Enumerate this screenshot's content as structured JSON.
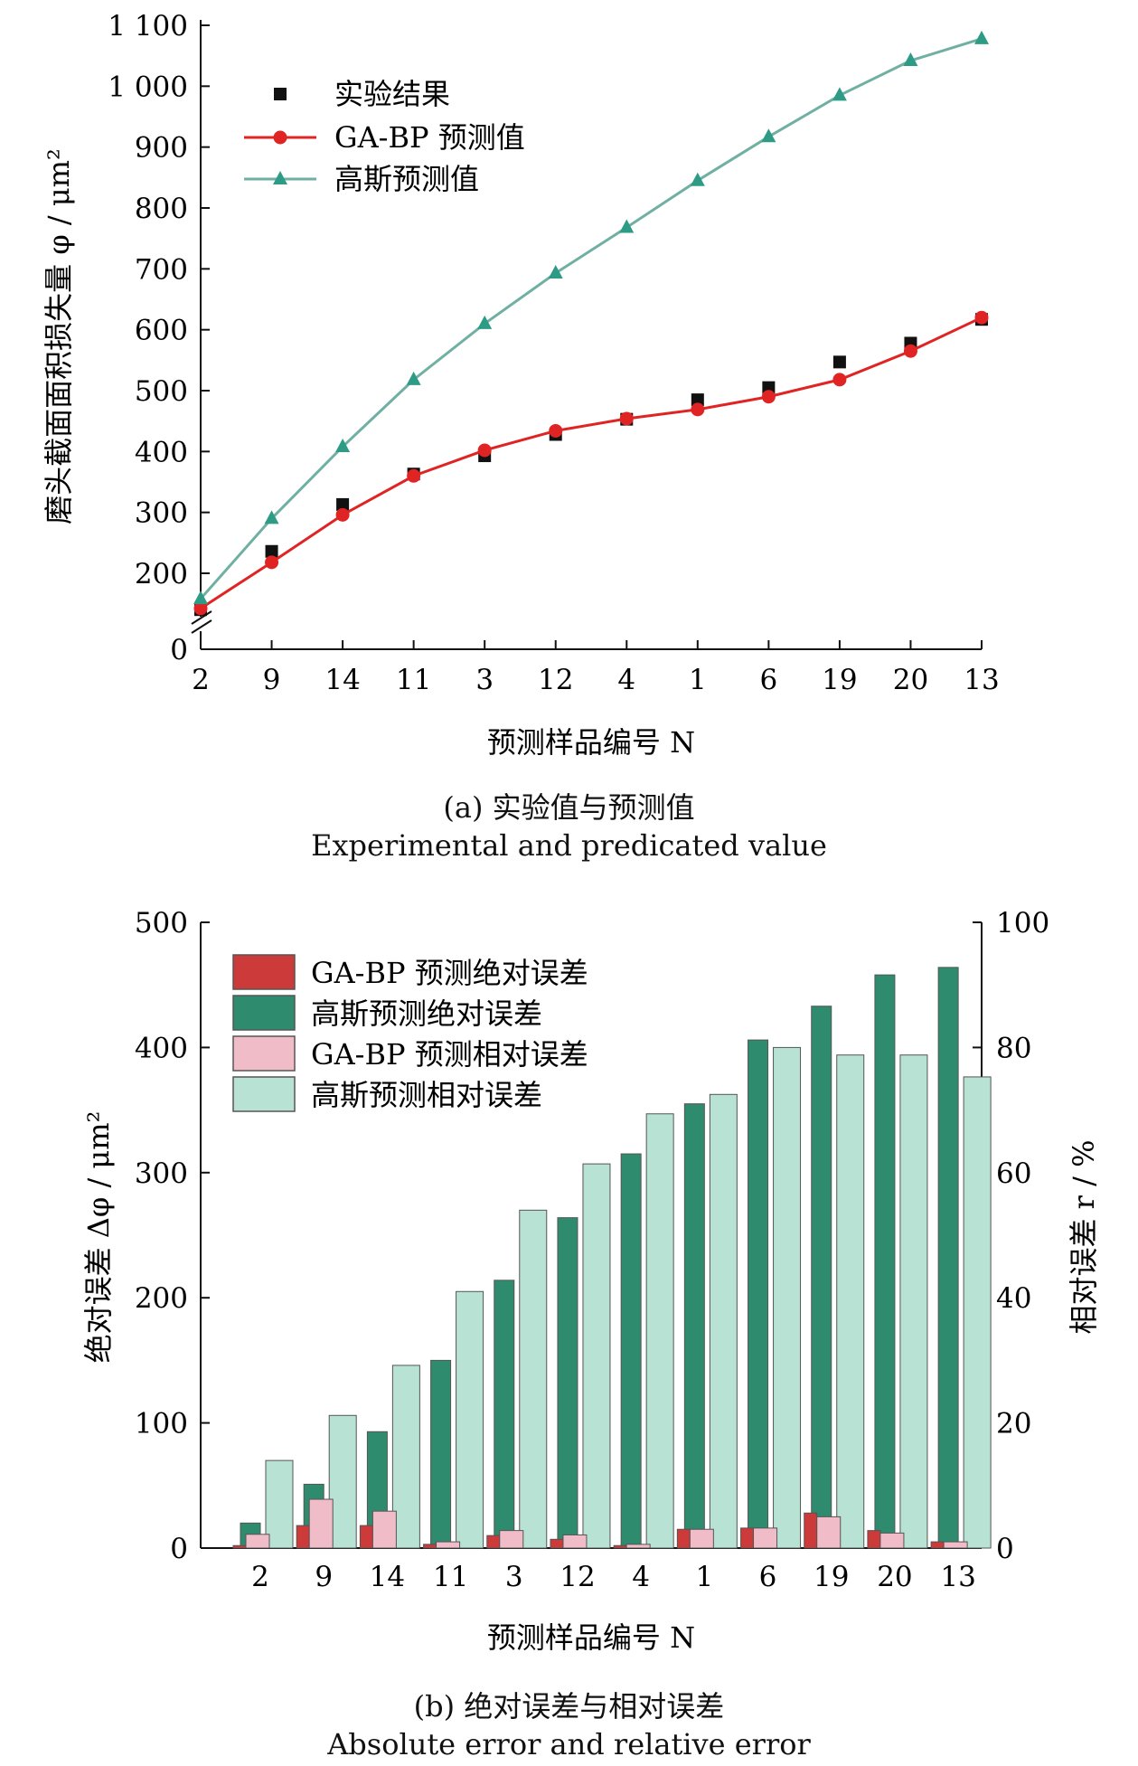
{
  "chart_data": [
    {
      "type": "line",
      "xlabel": "预测样品编号 N",
      "ylabel": "磨头截面面积损失量 φ / μm²",
      "categories": [
        "2",
        "9",
        "14",
        "11",
        "3",
        "12",
        "4",
        "1",
        "6",
        "19",
        "20",
        "13"
      ],
      "ylim": [
        0,
        1100
      ],
      "yticks": [
        "0",
        "200",
        "300",
        "400",
        "500",
        "600",
        "700",
        "800",
        "900",
        "1 000",
        "1 100"
      ],
      "axis_break": true,
      "legend_position": "top-left",
      "series": [
        {
          "name": "实验结果",
          "marker": "square",
          "color": "#111111",
          "values": [
            140,
            236,
            313,
            363,
            393,
            428,
            453,
            485,
            505,
            547,
            578,
            617
          ]
        },
        {
          "name": "GA-BP 预测值",
          "marker": "circle",
          "color": "#e02424",
          "values": [
            142,
            218,
            296,
            360,
            402,
            434,
            454,
            469,
            490,
            518,
            565,
            620
          ]
        },
        {
          "name": "高斯预测值",
          "marker": "triangle",
          "color": "#2e9b86",
          "values": [
            158,
            290,
            408,
            518,
            610,
            693,
            768,
            845,
            917,
            985,
            1042,
            1078
          ]
        }
      ],
      "caption": "(a) 实验值与预测值",
      "caption_en": "Experimental and predicated value"
    },
    {
      "type": "bar",
      "xlabel": "预测样品编号 N",
      "ylabel": "绝对误差 Δφ / μm²",
      "ylabel_right": "相对误差 r / %",
      "categories": [
        "2",
        "9",
        "14",
        "11",
        "3",
        "12",
        "4",
        "1",
        "6",
        "19",
        "20",
        "13"
      ],
      "ylim": [
        0,
        500
      ],
      "ylim_right": [
        0,
        100
      ],
      "yticks": [
        "0",
        "100",
        "200",
        "300",
        "400",
        "500"
      ],
      "yticks_right": [
        "0",
        "20",
        "40",
        "60",
        "80",
        "100"
      ],
      "legend_position": "top-left",
      "series": [
        {
          "name": "GA-BP 预测绝对误差",
          "axis": "left",
          "color": "#cc3a3a",
          "values": [
            2,
            18,
            18,
            3,
            10,
            7,
            2,
            15,
            16,
            28,
            14,
            5
          ]
        },
        {
          "name": "高斯预测绝对误差",
          "axis": "left",
          "color": "#2f8b6e",
          "values": [
            20,
            51,
            93,
            150,
            214,
            264,
            315,
            355,
            406,
            433,
            458,
            464
          ]
        },
        {
          "name": "GA-BP 预测相对误差",
          "axis": "right",
          "color": "#f0bcc8",
          "values": [
            2.2,
            7.8,
            5.9,
            1.0,
            2.8,
            2.1,
            0.6,
            3.0,
            3.2,
            5.0,
            2.4,
            1.0
          ]
        },
        {
          "name": "高斯预测相对误差",
          "axis": "right",
          "color": "#b7e2d4",
          "values": [
            14.0,
            21.2,
            29.2,
            41.0,
            54.0,
            61.4,
            69.4,
            72.5,
            80.0,
            78.8,
            78.8,
            75.3
          ]
        }
      ],
      "caption": "(b) 绝对误差与相对误差",
      "caption_en": "Absolute error and relative error"
    }
  ]
}
